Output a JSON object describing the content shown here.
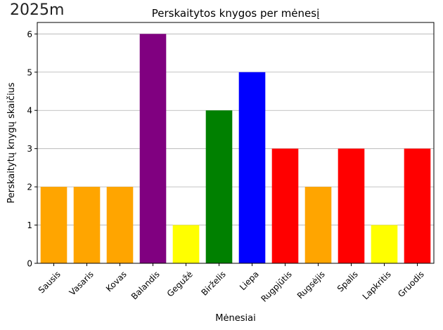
{
  "corner_label": "2025m",
  "chart_data": {
    "type": "bar",
    "title": "Perskaitytos knygos per mėnesį",
    "xlabel": "Mėnesiai",
    "ylabel": "Perskaitytų knygų skaičius",
    "categories": [
      "Sausis",
      "Vasaris",
      "Kovas",
      "Balandis",
      "Gegužė",
      "Birželis",
      "Liepa",
      "Rugpjūtis",
      "Rugsėjis",
      "Spalis",
      "Lapkritis",
      "Gruodis"
    ],
    "values": [
      2,
      2,
      2,
      6,
      1,
      4,
      5,
      3,
      2,
      3,
      1,
      3
    ],
    "colors": [
      "#ffa500",
      "#ffa500",
      "#ffa500",
      "#800080",
      "#ffff00",
      "#008000",
      "#0000ff",
      "#ff0000",
      "#ffa500",
      "#ff0000",
      "#ffff00",
      "#ff0000"
    ],
    "ylim": [
      0,
      6.3
    ],
    "yticks": [
      0,
      1,
      2,
      3,
      4,
      5,
      6
    ],
    "grid": "y"
  }
}
